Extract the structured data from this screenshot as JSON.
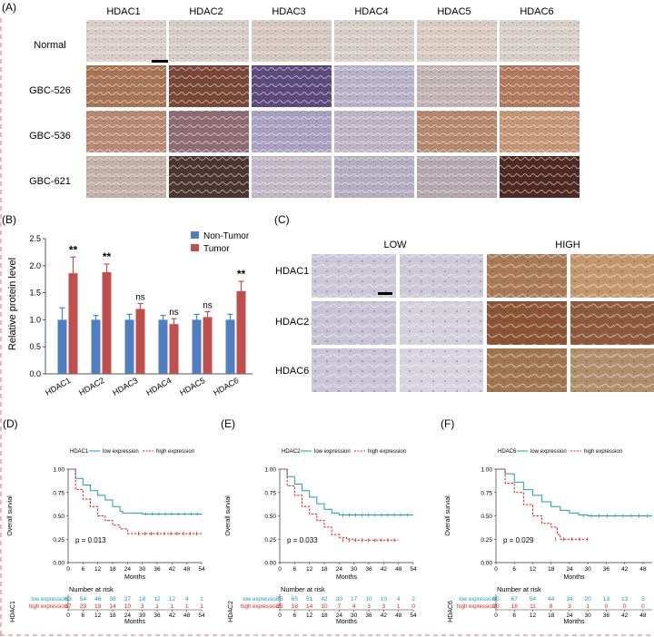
{
  "panelA": {
    "label": "(A)",
    "columns": [
      "HDAC1",
      "HDAC2",
      "HDAC3",
      "HDAC4",
      "HDAC5",
      "HDAC6"
    ],
    "rows": [
      {
        "name": "Normal",
        "tints": [
          "#d9cfc8",
          "#d6ccc6",
          "#d5c8c0",
          "#d7cdc7",
          "#d9cbc0",
          "#d8cec8"
        ]
      },
      {
        "name": "GBC-526",
        "tints": [
          "#a87555",
          "#7a4636",
          "#5d4a7d",
          "#b9b1c8",
          "#c2b3b4",
          "#b17a5d"
        ]
      },
      {
        "name": "GBC-536",
        "tints": [
          "#b98a73",
          "#8f6c74",
          "#a9a1c0",
          "#bdb5c5",
          "#b6896e",
          "#c59777"
        ]
      },
      {
        "name": "GBC-621",
        "tints": [
          "#c3b0a6",
          "#4c3630",
          "#c2b9c6",
          "#b4aebf",
          "#b5a8ae",
          "#4f2a22"
        ]
      }
    ]
  },
  "panelB": {
    "label": "(B)",
    "chart_data": {
      "type": "bar",
      "title": "",
      "xlabel": "",
      "ylabel": "Relative protein level",
      "ylim": [
        0,
        2.5
      ],
      "yticks": [
        "0.0",
        "0.5",
        "1.0",
        "1.5",
        "2.0",
        "2.5"
      ],
      "categories": [
        "HDAC1",
        "HDAC2",
        "HDAC3",
        "HDAC4",
        "HDAC5",
        "HDAC6"
      ],
      "series": [
        {
          "name": "Non-Tumor",
          "color": "#4f7fc1",
          "values": [
            1.0,
            1.0,
            1.0,
            1.0,
            1.0,
            1.0
          ],
          "errors": [
            0.22,
            0.08,
            0.1,
            0.08,
            0.1,
            0.1
          ]
        },
        {
          "name": "Tumor",
          "color": "#c0504d",
          "values": [
            1.86,
            1.88,
            1.2,
            0.92,
            1.05,
            1.53
          ],
          "errors": [
            0.3,
            0.15,
            0.1,
            0.1,
            0.1,
            0.18
          ]
        }
      ],
      "significance": [
        "**",
        "**",
        "ns",
        "ns",
        "ns",
        "**"
      ],
      "legend_position": "top-right"
    }
  },
  "panelC": {
    "label": "(C)",
    "low_label": "LOW",
    "high_label": "HIGH",
    "rows": [
      {
        "name": "HDAC1",
        "low": [
          "#ccc7d6",
          "#cdc8d5"
        ],
        "high": [
          "#a97a55",
          "#c1966a"
        ]
      },
      {
        "name": "HDAC2",
        "low": [
          "#c7c3d3",
          "#d3cfdb"
        ],
        "high": [
          "#8a5435",
          "#8e5a3c"
        ]
      },
      {
        "name": "HDAC6",
        "low": [
          "#c9c4d6",
          "#d6d3de"
        ],
        "high": [
          "#a1764f",
          "#b08d6b"
        ]
      }
    ]
  },
  "km": [
    {
      "label": "(D)",
      "gene": "HDAC1",
      "legend_low": "low expression",
      "legend_high": "high expression",
      "ylabel": "Overall survial",
      "xlabel": "Months",
      "pvalue": "p = 0.013",
      "yticks": [
        "1.00",
        "0.75",
        "0.50",
        "0.25",
        "0.00"
      ],
      "xticks": [
        "0",
        "6",
        "12",
        "18",
        "24",
        "30",
        "36",
        "42",
        "48",
        "54"
      ],
      "xmax": 54,
      "chart_data": {
        "type": "line",
        "series": [
          {
            "name": "low expression",
            "color": "#1a9fb5",
            "x": [
              0,
              3,
              6,
              9,
              12,
              15,
              18,
              21,
              22,
              24,
              27,
              30,
              33,
              36,
              42,
              48,
              54
            ],
            "y": [
              1.0,
              0.9,
              0.83,
              0.77,
              0.72,
              0.67,
              0.6,
              0.55,
              0.53,
              0.53,
              0.53,
              0.52,
              0.52,
              0.52,
              0.52,
              0.52,
              0.52
            ]
          },
          {
            "name": "high expression",
            "color": "#e0201b",
            "x": [
              0,
              3,
              6,
              9,
              12,
              15,
              18,
              21,
              24,
              27,
              30,
              36,
              42,
              48,
              54
            ],
            "y": [
              1.0,
              0.78,
              0.68,
              0.6,
              0.5,
              0.45,
              0.4,
              0.36,
              0.31,
              0.31,
              0.31,
              0.31,
              0.31,
              0.31,
              0.31
            ]
          }
        ]
      },
      "risk_title": "Number at risk",
      "risk_ylabel": "HDAC1",
      "risk_rows": [
        {
          "name": "low expression",
          "color": "#1a9fb5",
          "values": [
            "63",
            "54",
            "46",
            "38",
            "27",
            "18",
            "12",
            "12",
            "4",
            "1"
          ]
        },
        {
          "name": "high expression",
          "color": "#e0201b",
          "values": [
            "37",
            "29",
            "19",
            "14",
            "10",
            "3",
            "1",
            "1",
            "1",
            "1"
          ]
        }
      ]
    },
    {
      "label": "(E)",
      "gene": "HDAC2",
      "legend_low": "low expression",
      "legend_high": "high expression",
      "ylabel": "Overall survial",
      "xlabel": "Months",
      "pvalue": "p = 0.033",
      "yticks": [
        "1.00",
        "0.75",
        "0.50",
        "0.25",
        "0.00"
      ],
      "xticks": [
        "0",
        "6",
        "12",
        "18",
        "24",
        "30",
        "36",
        "42",
        "48",
        "54"
      ],
      "xmax": 54,
      "chart_data": {
        "type": "line",
        "series": [
          {
            "name": "low expression",
            "color": "#1a9fb5",
            "x": [
              0,
              3,
              6,
              9,
              12,
              15,
              18,
              21,
              24,
              30,
              36,
              42,
              48,
              54
            ],
            "y": [
              1.0,
              0.92,
              0.84,
              0.77,
              0.7,
              0.63,
              0.57,
              0.53,
              0.51,
              0.51,
              0.51,
              0.51,
              0.51,
              0.51
            ]
          },
          {
            "name": "high expression",
            "color": "#e0201b",
            "x": [
              0,
              3,
              6,
              9,
              12,
              15,
              18,
              21,
              24,
              27,
              30,
              36,
              42,
              48
            ],
            "y": [
              1.0,
              0.82,
              0.72,
              0.6,
              0.52,
              0.45,
              0.38,
              0.3,
              0.27,
              0.25,
              0.24,
              0.24,
              0.24,
              0.24
            ]
          }
        ]
      },
      "risk_title": "Number at risk",
      "risk_ylabel": "HDAC2",
      "risk_rows": [
        {
          "name": "low expression",
          "color": "#1a9fb5",
          "values": [
            "75",
            "65",
            "51",
            "42",
            "30",
            "17",
            "10",
            "10",
            "4",
            "2"
          ]
        },
        {
          "name": "high expression",
          "color": "#e0201b",
          "values": [
            "25",
            "18",
            "14",
            "10",
            "7",
            "4",
            "3",
            "3",
            "1",
            "0"
          ]
        }
      ]
    },
    {
      "label": "(F)",
      "gene": "HDAC6",
      "legend_low": "low expression",
      "legend_high": "high expression",
      "ylabel": "Overall survial",
      "xlabel": "Months",
      "pvalue": "p = 0.029",
      "yticks": [
        "1.00",
        "0.75",
        "0.50",
        "0.25",
        "0.00"
      ],
      "xticks": [
        "0",
        "6",
        "12",
        "18",
        "24",
        "30",
        "36",
        "42",
        "48"
      ],
      "xmax": 51,
      "chart_data": {
        "type": "line",
        "series": [
          {
            "name": "low expression",
            "color": "#1a9fb5",
            "x": [
              0,
              3,
              6,
              9,
              12,
              15,
              18,
              21,
              24,
              27,
              30,
              36,
              42,
              48,
              51
            ],
            "y": [
              1.0,
              0.95,
              0.86,
              0.78,
              0.72,
              0.65,
              0.6,
              0.56,
              0.53,
              0.51,
              0.5,
              0.5,
              0.5,
              0.5,
              0.5
            ]
          },
          {
            "name": "high expression",
            "color": "#e0201b",
            "x": [
              0,
              3,
              6,
              9,
              12,
              15,
              18,
              20,
              21,
              24,
              27,
              30
            ],
            "y": [
              1.0,
              0.85,
              0.75,
              0.62,
              0.5,
              0.42,
              0.38,
              0.3,
              0.25,
              0.25,
              0.25,
              0.25
            ]
          }
        ]
      },
      "risk_title": "Number at risk",
      "risk_ylabel": "HDAC6",
      "risk_rows": [
        {
          "name": "low expression",
          "color": "#1a9fb5",
          "values": [
            "80",
            "67",
            "54",
            "44",
            "34",
            "20",
            "13",
            "13",
            "5"
          ]
        },
        {
          "name": "high expression",
          "color": "#e0201b",
          "values": [
            "20",
            "16",
            "11",
            "8",
            "3",
            "1",
            "0",
            "0",
            "0"
          ]
        }
      ]
    }
  ]
}
